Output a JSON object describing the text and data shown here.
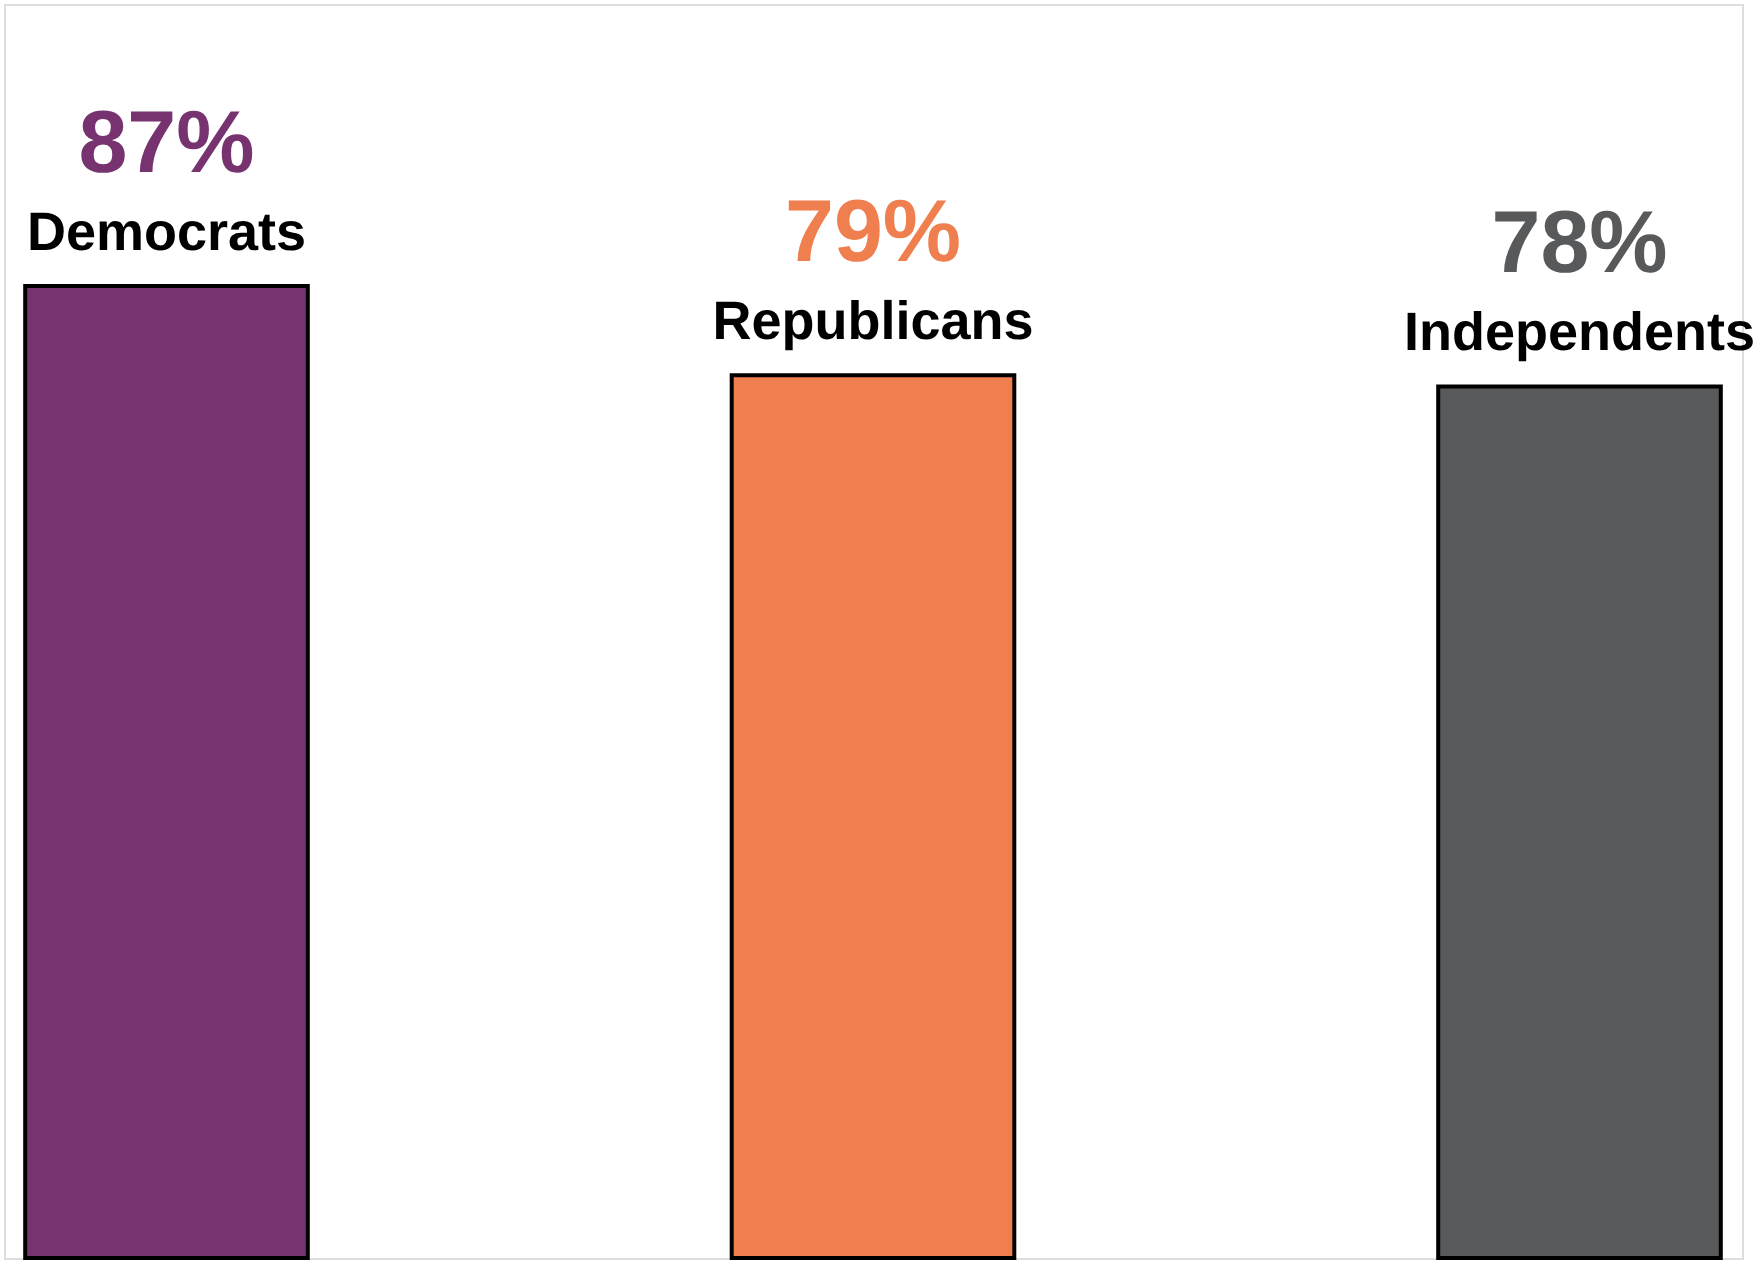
{
  "chart_data": {
    "type": "bar",
    "categories": [
      "Democrats",
      "Republicans",
      "Independents"
    ],
    "values": [
      87,
      79,
      78
    ],
    "colors": [
      "#76336f",
      "#f07f4f",
      "#58595b"
    ],
    "value_labels": [
      "87%",
      "79%",
      "78%"
    ]
  }
}
